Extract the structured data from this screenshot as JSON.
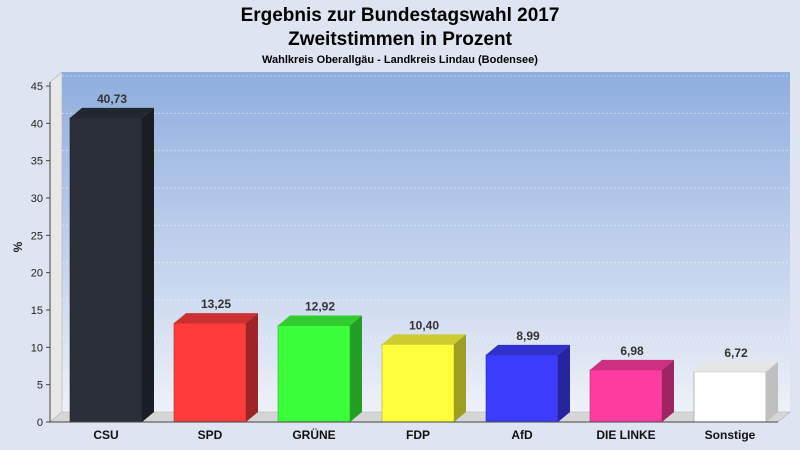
{
  "header": {
    "title": "Ergebnis zur Bundestagswahl 2017",
    "subtitle": "Zweitstimmen in Prozent",
    "region": "Wahlkreis Oberallgäu - Landkreis Lindau (Bodensee)"
  },
  "chart_data": {
    "type": "bar",
    "title": "Ergebnis zur Bundestagswahl 2017",
    "subtitle": "Zweitstimmen in Prozent",
    "ylabel": "%",
    "xlabel": "",
    "ylim": [
      0,
      45
    ],
    "yticks": [
      0,
      5,
      10,
      15,
      20,
      25,
      30,
      35,
      40,
      45
    ],
    "grid": true,
    "categories": [
      "CSU",
      "SPD",
      "GRÜNE",
      "FDP",
      "AfD",
      "DIE LINKE",
      "Sonstige"
    ],
    "values": [
      40.73,
      13.25,
      12.92,
      10.4,
      8.99,
      6.98,
      6.72
    ],
    "value_labels": [
      "40,73",
      "13,25",
      "12,92",
      "10,40",
      "8,99",
      "6,98",
      "6,72"
    ],
    "colors": [
      "#2b2f3a",
      "#ff3c3c",
      "#3cff3c",
      "#ffff3c",
      "#3c3cff",
      "#ff3ca0",
      "#ffffff"
    ]
  }
}
